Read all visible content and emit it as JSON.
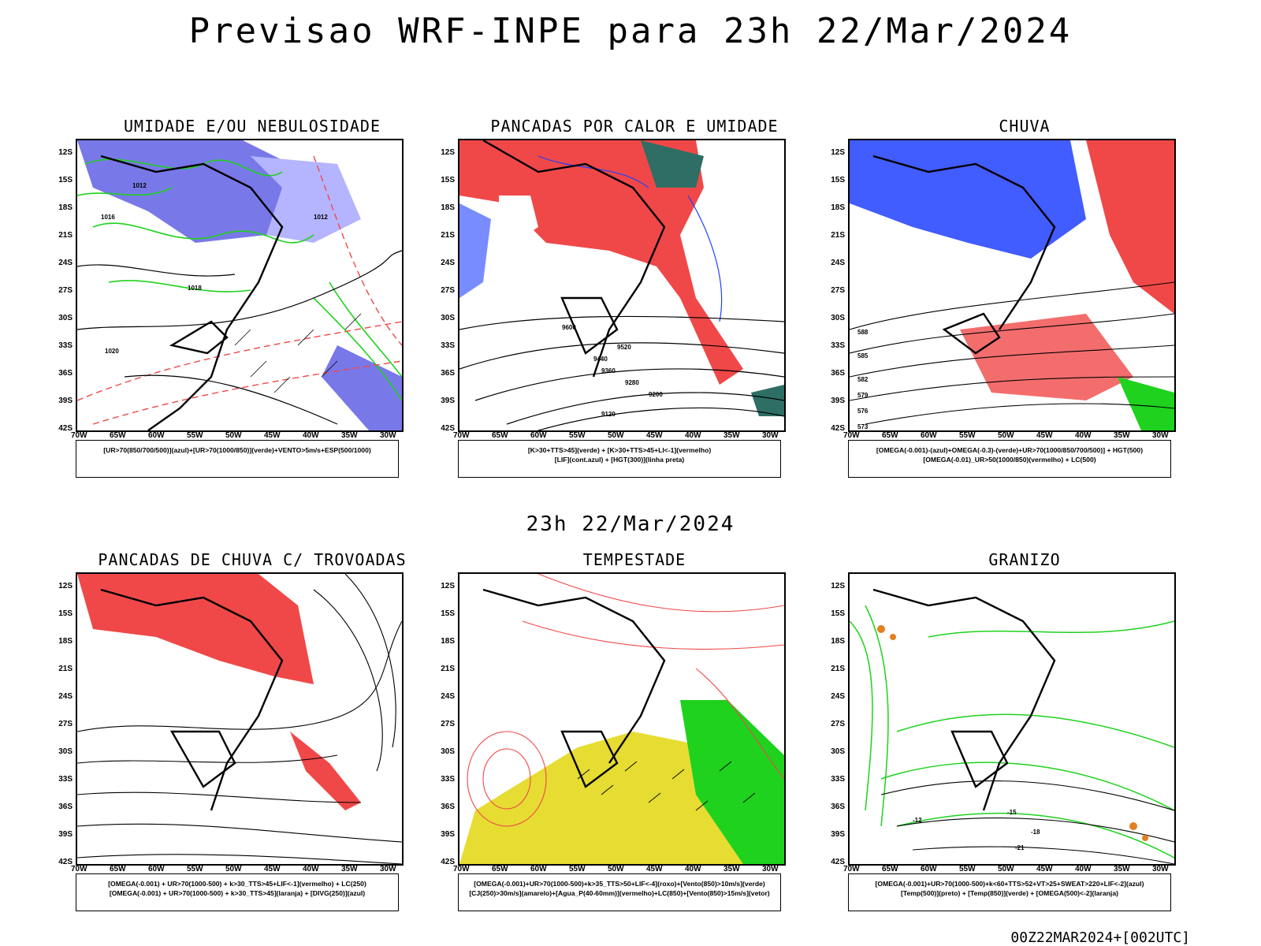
{
  "header": {
    "title": "Previsao WRF-INPE  para 23h 22/Mar/2024",
    "mid_title": "23h 22/Mar/2024",
    "footer": "00Z22MAR2024+[002UTC]"
  },
  "axes": {
    "lat_labels": [
      "12S",
      "15S",
      "18S",
      "21S",
      "24S",
      "27S",
      "30S",
      "33S",
      "36S",
      "39S",
      "42S"
    ],
    "lon_labels": [
      "70W",
      "65W",
      "60W",
      "55W",
      "50W",
      "45W",
      "40W",
      "35W",
      "30W"
    ]
  },
  "colors": {
    "blue_fill": "#7878e8",
    "light_blue": "#b4b4ff",
    "red_fill": "#f04848",
    "green": "#1ed21e",
    "dark_teal": "#2e6e64",
    "yellow": "#e6dc32",
    "orange": "#e08020",
    "line_blue": "#2040ff"
  },
  "panels": [
    {
      "title": "UMIDADE E/OU NEBULOSIDADE",
      "legend": [
        "[UR>70(850/700/500)](azul)+[UR>70(1000/850)](verde)+VENTO>5m/s+ESP(500/1000)"
      ]
    },
    {
      "title": "PANCADAS POR CALOR E UMIDADE",
      "legend": [
        "[K>30+TTS>45](verde) + [K>30+TTS>45+LI<-1](vermelho)",
        "[LIF](cont.azul) + [HGT(300)](linha preta)"
      ]
    },
    {
      "title": "CHUVA",
      "legend": [
        "[OMEGA(-0.001)-(azul)+OMEGA(-0.3)-(verde)+UR>70(1000/850/700/500)] + HGT(500)",
        "[OMEGA(-0.01)_UR>50(1000/850)(vermelho) + LC(500)"
      ]
    },
    {
      "title": "PANCADAS DE CHUVA C/ TROVOADAS",
      "legend": [
        "[OMEGA(-0.001) + UR>70(1000-500) + k>30_TTS>45+LIF<-1](vermelho) + LC(250)",
        "[OMEGA(-0.001) + UR>70(1000-500) + k>30_TTS>45](laranja) + [DIVG(250)](azul)"
      ]
    },
    {
      "title": "TEMPESTADE",
      "legend": [
        "[OMEGA(-0.001)+UR>70(1000-500)+k>35_TTS>50+LIF<-4](roxo)+[Vento(850)>10m/s](verde)",
        "[CJ(250)>30m/s](amarelo)+[Agua_P(40-60mm)](vermelho)+LC(850)+[Vento(850)>15m/s](vetor)"
      ]
    },
    {
      "title": "GRANIZO",
      "legend": [
        "[OMEGA(-0.001)+UR>70(1000-500)+k<60+TTS>52+VT>25+SWEAT>220+LIF<-2](azul)",
        "[Temp(500)](preto) + [Temp(850)](verde) + [OMEGA(500)<-2](laranja)"
      ]
    }
  ],
  "contour_labels": {
    "p1": [
      "1012",
      "1016",
      "1020",
      "1012",
      "1018"
    ],
    "p2": [
      "9600",
      "9520",
      "9440",
      "9360",
      "9280",
      "9200",
      "9120"
    ],
    "p3": [
      "588",
      "585",
      "582",
      "579",
      "576",
      "573"
    ],
    "p6": [
      "-12",
      "-15",
      "-18",
      "-21"
    ]
  }
}
